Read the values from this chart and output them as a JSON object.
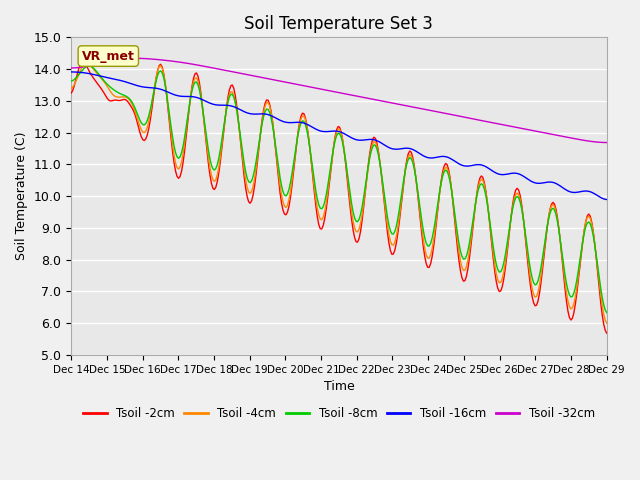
{
  "title": "Soil Temperature Set 3",
  "xlabel": "Time",
  "ylabel": "Soil Temperature (C)",
  "ylim": [
    5.0,
    15.0
  ],
  "yticks": [
    5.0,
    6.0,
    7.0,
    8.0,
    9.0,
    10.0,
    11.0,
    12.0,
    13.0,
    14.0,
    15.0
  ],
  "xtick_labels": [
    "Dec 14",
    "Dec 15",
    "Dec 16",
    "Dec 17",
    "Dec 18",
    "Dec 19",
    "Dec 20",
    "Dec 21",
    "Dec 22",
    "Dec 23",
    "Dec 24",
    "Dec 25",
    "Dec 26",
    "Dec 27",
    "Dec 28",
    "Dec 29"
  ],
  "series_colors": [
    "#ff0000",
    "#ff8800",
    "#00cc00",
    "#0000ff",
    "#cc00cc"
  ],
  "series_labels": [
    "Tsoil -2cm",
    "Tsoil -4cm",
    "Tsoil -8cm",
    "Tsoil -16cm",
    "Tsoil -32cm"
  ],
  "annotation_text": "VR_met",
  "annotation_color": "#880000",
  "annotation_bg": "#ffffcc",
  "fig_bg_color": "#f0f0f0",
  "plot_bg_color": "#e8e8e8",
  "grid_color": "#ffffff"
}
